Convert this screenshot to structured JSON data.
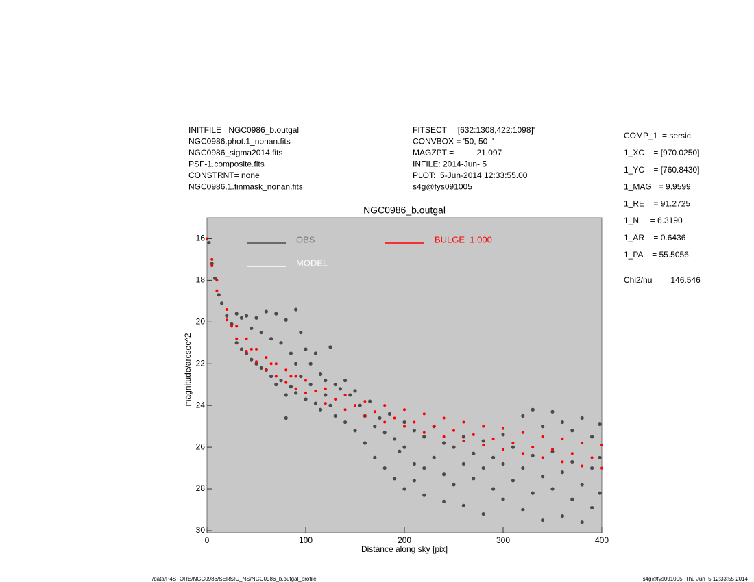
{
  "header": {
    "left": [
      "INITFILE= NGC0986_b.outgal",
      "NGC0986.phot.1_nonan.fits",
      "NGC0986_sigma2014.fits",
      "PSF-1.composite.fits",
      "CONSTRNT= none",
      "NGC0986.1.finmask_nonan.fits"
    ],
    "middle": [
      "FITSECT = '[632:1308,422:1098]'",
      "CONVBOX = '50, 50  '",
      "MAGZPT =          21.097",
      "INFILE: 2014-Jun- 5",
      "PLOT:  5-Jun-2014 12:33:55.00",
      "s4g@fys091005"
    ],
    "params": [
      "COMP_1  = sersic",
      "1_XC    = [970.0250]",
      "1_YC    = [760.8430]",
      "1_MAG   = 9.9599",
      "1_RE    = 91.2725",
      "1_N     = 6.3190",
      "1_AR    = 0.6436",
      "1_PA    = 55.5056"
    ],
    "chi2": "Chi2/nu=      146.546"
  },
  "chart_data": {
    "type": "scatter",
    "title": "NGC0986_b.outgal",
    "x_label": "Distance along sky [pix]",
    "y_label": "magnitude/arcsec^2",
    "xlim": [
      0,
      400
    ],
    "xticks": [
      0,
      100,
      200,
      300,
      400
    ],
    "ylim": [
      30.1,
      15.0
    ],
    "yticks": [
      16,
      18,
      20,
      22,
      24,
      26,
      28,
      30
    ],
    "background": "#c8c8c8",
    "series": [
      {
        "name": "OBS",
        "color": "#4a4a4a",
        "x": [
          2,
          5,
          8,
          12,
          15,
          20,
          25,
          30,
          30,
          35,
          35,
          40,
          40,
          45,
          45,
          50,
          50,
          55,
          55,
          60,
          60,
          65,
          65,
          70,
          70,
          75,
          75,
          80,
          80,
          80,
          85,
          85,
          90,
          90,
          90,
          95,
          95,
          100,
          100,
          105,
          105,
          110,
          110,
          115,
          115,
          120,
          120,
          125,
          125,
          130,
          130,
          135,
          140,
          140,
          145,
          150,
          150,
          155,
          160,
          160,
          165,
          170,
          170,
          175,
          180,
          180,
          185,
          190,
          190,
          195,
          200,
          200,
          200,
          210,
          210,
          210,
          220,
          220,
          220,
          230,
          230,
          240,
          240,
          240,
          250,
          250,
          260,
          260,
          260,
          270,
          270,
          280,
          280,
          280,
          290,
          290,
          300,
          300,
          300,
          310,
          310,
          320,
          320,
          320,
          330,
          330,
          330,
          340,
          340,
          340,
          350,
          350,
          350,
          360,
          360,
          360,
          370,
          370,
          370,
          380,
          380,
          380,
          390,
          390,
          390,
          398,
          398,
          398
        ],
        "values": [
          16.2,
          17.2,
          17.9,
          18.7,
          19.1,
          19.7,
          20.1,
          19.6,
          21.0,
          19.8,
          21.3,
          19.7,
          21.5,
          20.3,
          21.8,
          19.8,
          22.0,
          20.5,
          22.2,
          19.5,
          22.3,
          20.8,
          22.6,
          19.6,
          23.0,
          21.0,
          22.8,
          19.9,
          23.5,
          24.6,
          21.5,
          23.1,
          19.4,
          22.0,
          23.4,
          20.5,
          22.6,
          21.3,
          23.7,
          22.0,
          23.0,
          21.5,
          23.9,
          22.5,
          24.2,
          22.8,
          23.5,
          21.2,
          24.0,
          23.0,
          24.5,
          23.2,
          22.8,
          24.8,
          23.5,
          23.3,
          25.2,
          24.0,
          24.5,
          25.8,
          23.8,
          25.0,
          26.5,
          24.6,
          25.3,
          27.0,
          24.4,
          25.6,
          27.5,
          26.2,
          24.8,
          26.0,
          28.0,
          25.2,
          26.8,
          27.6,
          25.5,
          27.0,
          28.3,
          25.0,
          26.5,
          25.8,
          27.3,
          28.6,
          26.0,
          27.8,
          25.5,
          26.8,
          28.8,
          26.3,
          27.5,
          25.7,
          27.0,
          29.2,
          26.5,
          28.0,
          25.4,
          26.8,
          28.5,
          26.0,
          27.6,
          24.5,
          27.0,
          29.0,
          24.2,
          26.4,
          28.2,
          25.0,
          27.4,
          29.5,
          24.3,
          26.2,
          28.0,
          24.8,
          27.2,
          29.3,
          25.2,
          26.7,
          28.5,
          24.6,
          27.8,
          29.6,
          25.5,
          27.0,
          28.9,
          24.9,
          26.5,
          28.2
        ]
      },
      {
        "name": "MODEL",
        "color": "#ffffff",
        "x": [],
        "values": []
      },
      {
        "name": "BULGE  1.000",
        "color": "#ff0000",
        "x": [
          0,
          5,
          5,
          10,
          10,
          20,
          20,
          30,
          30,
          40,
          40,
          50,
          50,
          60,
          60,
          70,
          70,
          80,
          80,
          90,
          90,
          100,
          100,
          120,
          120,
          140,
          140,
          160,
          160,
          180,
          180,
          200,
          200,
          220,
          220,
          240,
          240,
          260,
          260,
          280,
          280,
          300,
          300,
          320,
          320,
          340,
          340,
          360,
          360,
          380,
          380,
          400,
          400,
          25,
          45,
          65,
          85,
          110,
          130,
          150,
          170,
          190,
          210,
          230,
          250,
          270,
          290,
          310,
          330,
          350,
          370,
          390
        ],
        "values": [
          16.0,
          17.0,
          17.3,
          18.0,
          18.5,
          19.4,
          19.9,
          20.2,
          20.8,
          20.8,
          21.4,
          21.3,
          21.9,
          21.7,
          22.3,
          22.0,
          22.6,
          22.3,
          22.9,
          22.6,
          23.2,
          22.8,
          23.4,
          23.2,
          23.9,
          23.5,
          24.2,
          23.8,
          24.5,
          24.0,
          24.8,
          24.2,
          25.0,
          24.4,
          25.3,
          24.6,
          25.5,
          24.8,
          25.7,
          25.0,
          25.9,
          25.1,
          26.1,
          25.3,
          26.3,
          25.5,
          26.5,
          25.6,
          26.7,
          25.8,
          26.9,
          25.9,
          27.0,
          20.2,
          21.3,
          22.0,
          22.6,
          23.3,
          23.7,
          24.0,
          24.3,
          24.6,
          24.8,
          25.0,
          25.2,
          25.4,
          25.6,
          25.8,
          26.0,
          26.1,
          26.3,
          26.5
        ]
      }
    ]
  },
  "footer": {
    "left": "/data/P4STORE/NGC0986/SERSIC_NS/NGC0986_b.outgal_profile",
    "right": "s4g@fys091005  Thu Jun  5 12:33:55 2014"
  }
}
